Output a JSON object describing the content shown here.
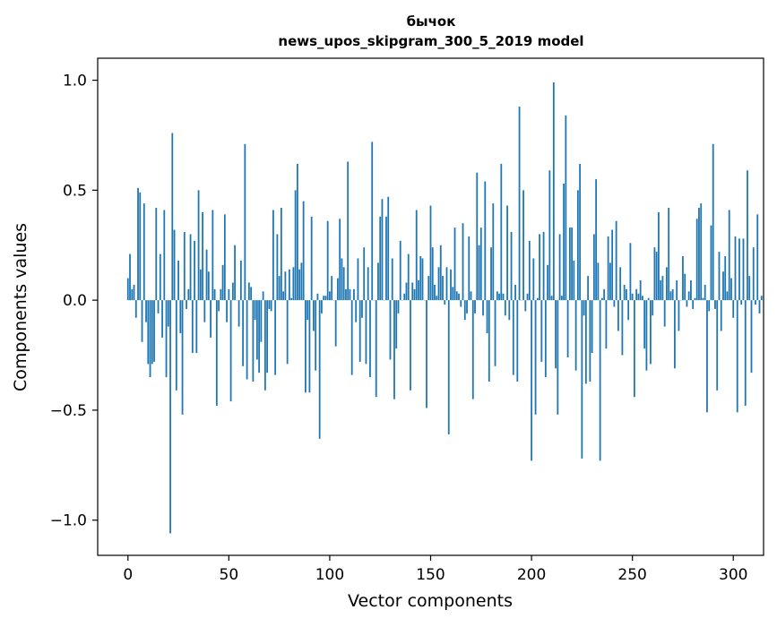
{
  "chart_data": {
    "type": "bar",
    "title": "бычок",
    "subtitle": "news_upos_skipgram_300_5_2019 model",
    "xlabel": "Vector components",
    "ylabel": "Components values",
    "xlim": [
      -15,
      315
    ],
    "ylim": [
      -1.16,
      1.1
    ],
    "xticks": [
      0,
      50,
      100,
      150,
      200,
      250,
      300
    ],
    "yticks": [
      -1.0,
      -0.5,
      0.0,
      0.5,
      1.0
    ],
    "ytick_labels": [
      "−1.0",
      "−0.5",
      "0.0",
      "0.5",
      "1.0"
    ],
    "bar_color": "#1f77b4",
    "grid": false,
    "values": [
      0.1,
      0.21,
      0.05,
      0.07,
      -0.08,
      0.51,
      0.49,
      -0.19,
      0.44,
      -0.1,
      -0.29,
      -0.35,
      -0.29,
      -0.28,
      0.42,
      -0.06,
      0.21,
      -0.17,
      0.41,
      -0.35,
      -0.12,
      -1.06,
      0.76,
      0.32,
      -0.41,
      0.18,
      -0.15,
      -0.52,
      0.31,
      -0.04,
      0.05,
      0.3,
      -0.24,
      0.27,
      -0.24,
      0.5,
      0.14,
      0.4,
      -0.1,
      0.23,
      0.13,
      -0.17,
      0.41,
      0.05,
      -0.48,
      -0.05,
      0.05,
      0.16,
      0.39,
      -0.1,
      0.05,
      -0.46,
      0.08,
      0.25,
      0.0,
      -0.12,
      0.18,
      -0.3,
      0.71,
      -0.36,
      0.08,
      0.06,
      -0.37,
      -0.09,
      -0.27,
      -0.33,
      -0.19,
      0.04,
      -0.41,
      -0.33,
      -0.04,
      -0.05,
      0.41,
      -0.34,
      0.3,
      0.11,
      0.42,
      0.04,
      0.13,
      -0.29,
      0.14,
      0.01,
      0.15,
      0.5,
      0.62,
      0.14,
      0.17,
      0.45,
      -0.42,
      -0.09,
      -0.42,
      0.38,
      -0.14,
      -0.32,
      0.03,
      -0.63,
      -0.06,
      0.02,
      0.02,
      0.36,
      0.04,
      0.11,
      0.0,
      -0.21,
      0.1,
      0.37,
      0.19,
      0.15,
      0.05,
      0.63,
      0.05,
      -0.34,
      0.05,
      -0.1,
      0.19,
      -0.28,
      -0.08,
      0.24,
      -0.29,
      0.15,
      -0.35,
      0.72,
      0.0,
      -0.44,
      0.17,
      0.38,
      0.46,
      0.0,
      0.38,
      0.47,
      -0.27,
      0.19,
      -0.45,
      -0.22,
      -0.06,
      0.27,
      0.0,
      0.03,
      0.08,
      0.21,
      -0.41,
      0.08,
      0.05,
      0.41,
      0.09,
      0.2,
      0.19,
      0.0,
      -0.49,
      0.11,
      0.43,
      0.24,
      0.07,
      0.02,
      0.15,
      0.25,
      0.11,
      -0.02,
      0.15,
      -0.61,
      0.14,
      0.06,
      0.33,
      0.04,
      0.03,
      -0.03,
      0.35,
      -0.09,
      -0.06,
      0.29,
      0.04,
      -0.45,
      -0.06,
      0.58,
      0.25,
      0.33,
      -0.07,
      0.54,
      -0.15,
      -0.37,
      0.24,
      0.44,
      -0.3,
      0.04,
      0.03,
      0.62,
      0.03,
      -0.07,
      0.43,
      -0.09,
      0.31,
      -0.34,
      0.07,
      -0.37,
      0.88,
      0.0,
      0.5,
      -0.05,
      0.03,
      0.27,
      -0.73,
      0.19,
      -0.52,
      0.01,
      0.3,
      -0.28,
      0.31,
      -0.35,
      0.16,
      0.59,
      0.02,
      0.99,
      -0.31,
      -0.52,
      0.3,
      0.02,
      0.53,
      0.84,
      -0.26,
      0.33,
      0.33,
      0.18,
      -0.32,
      0.5,
      0.62,
      -0.72,
      -0.07,
      -0.38,
      0.11,
      -0.37,
      -0.24,
      0.3,
      0.55,
      0.17,
      -0.73,
      0.01,
      0.05,
      -0.22,
      0.29,
      0.17,
      0.32,
      -0.03,
      0.36,
      -0.14,
      0.15,
      -0.25,
      0.07,
      0.05,
      -0.09,
      0.26,
      0.03,
      -0.44,
      0.05,
      0.03,
      0.09,
      0.02,
      -0.22,
      -0.32,
      0.01,
      -0.29,
      -0.07,
      0.24,
      0.22,
      0.4,
      0.09,
      0.11,
      -0.12,
      0.15,
      0.42,
      0.04,
      0.05,
      -0.31,
      0.09,
      -0.14,
      0.0,
      0.2,
      0.12,
      -0.03,
      0.04,
      0.09,
      -0.04,
      0.01,
      0.37,
      0.42,
      0.44,
      0.01,
      0.07,
      -0.51,
      -0.05,
      0.34,
      0.71,
      -0.04,
      -0.41,
      0.22,
      -0.14,
      0.13,
      0.2,
      0.04,
      0.41,
      0.1,
      -0.08,
      0.29,
      -0.51,
      0.28,
      -0.02,
      0.28,
      -0.48,
      0.59,
      0.11,
      -0.33,
      0.24,
      -0.02,
      0.39,
      -0.06,
      0.02
    ]
  }
}
